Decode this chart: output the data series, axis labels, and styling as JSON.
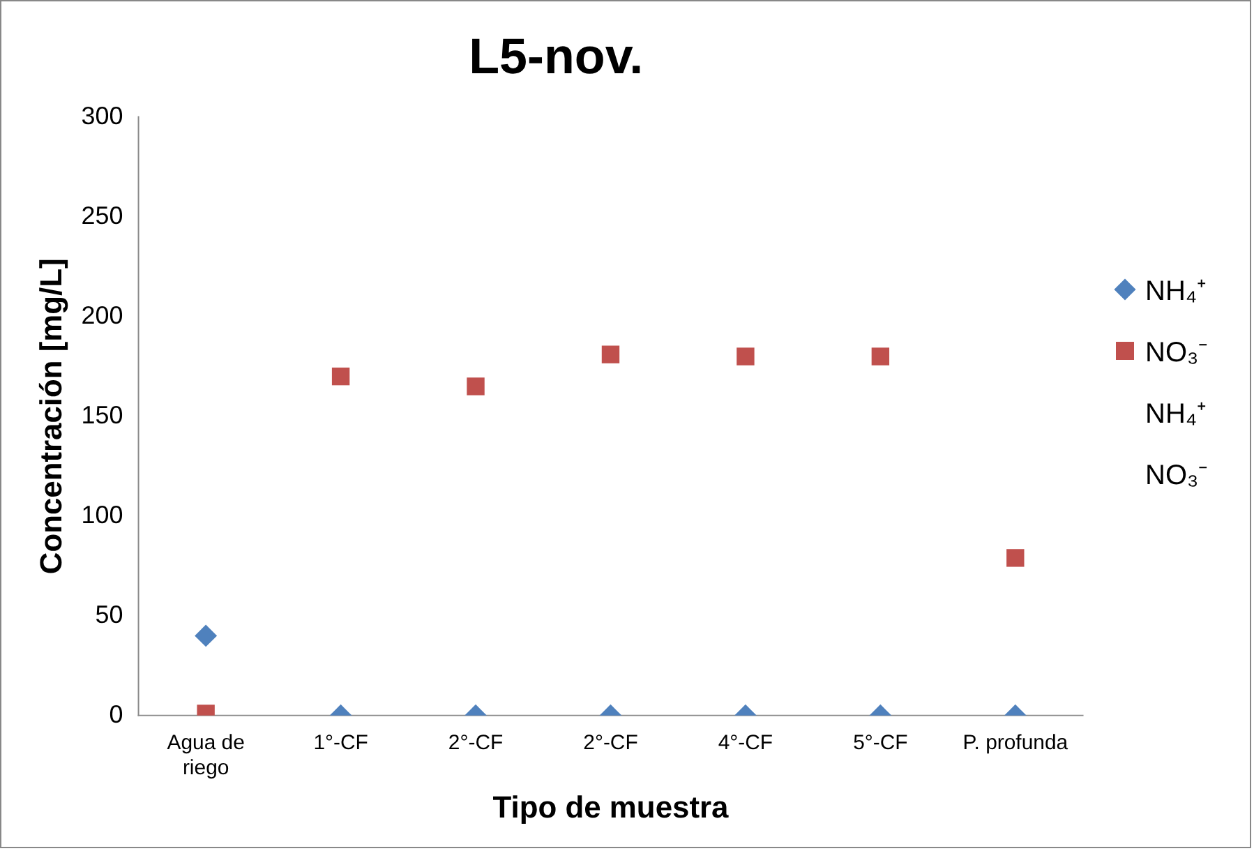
{
  "chart_data": {
    "type": "scatter",
    "title": "L5-nov.",
    "xlabel": "Tipo de muestra",
    "ylabel": "Concentración [mg/L]",
    "categories": [
      "Agua de riego",
      "1°-CF",
      "2°-CF",
      "2°-CF",
      "4°-CF",
      "5°-CF",
      "P. profunda"
    ],
    "series": [
      {
        "name": "NH₄⁺",
        "color": "#4f81bd",
        "marker": "diamond",
        "values": [
          40,
          0,
          0,
          0,
          0,
          0,
          0
        ]
      },
      {
        "name": "NO₃⁻",
        "color": "#c0504d",
        "marker": "square",
        "values": [
          1,
          170,
          165,
          181,
          180,
          180,
          79
        ]
      },
      {
        "name": "NH₄⁺",
        "marker": "none",
        "values": [
          null,
          null,
          null,
          null,
          null,
          null,
          null
        ]
      },
      {
        "name": "NO₃⁻",
        "marker": "none",
        "values": [
          null,
          null,
          null,
          null,
          null,
          null,
          null
        ]
      }
    ],
    "ylim": [
      0,
      300
    ],
    "yticks": [
      0,
      50,
      100,
      150,
      200,
      250,
      300
    ],
    "grid": false,
    "legend": "right"
  }
}
